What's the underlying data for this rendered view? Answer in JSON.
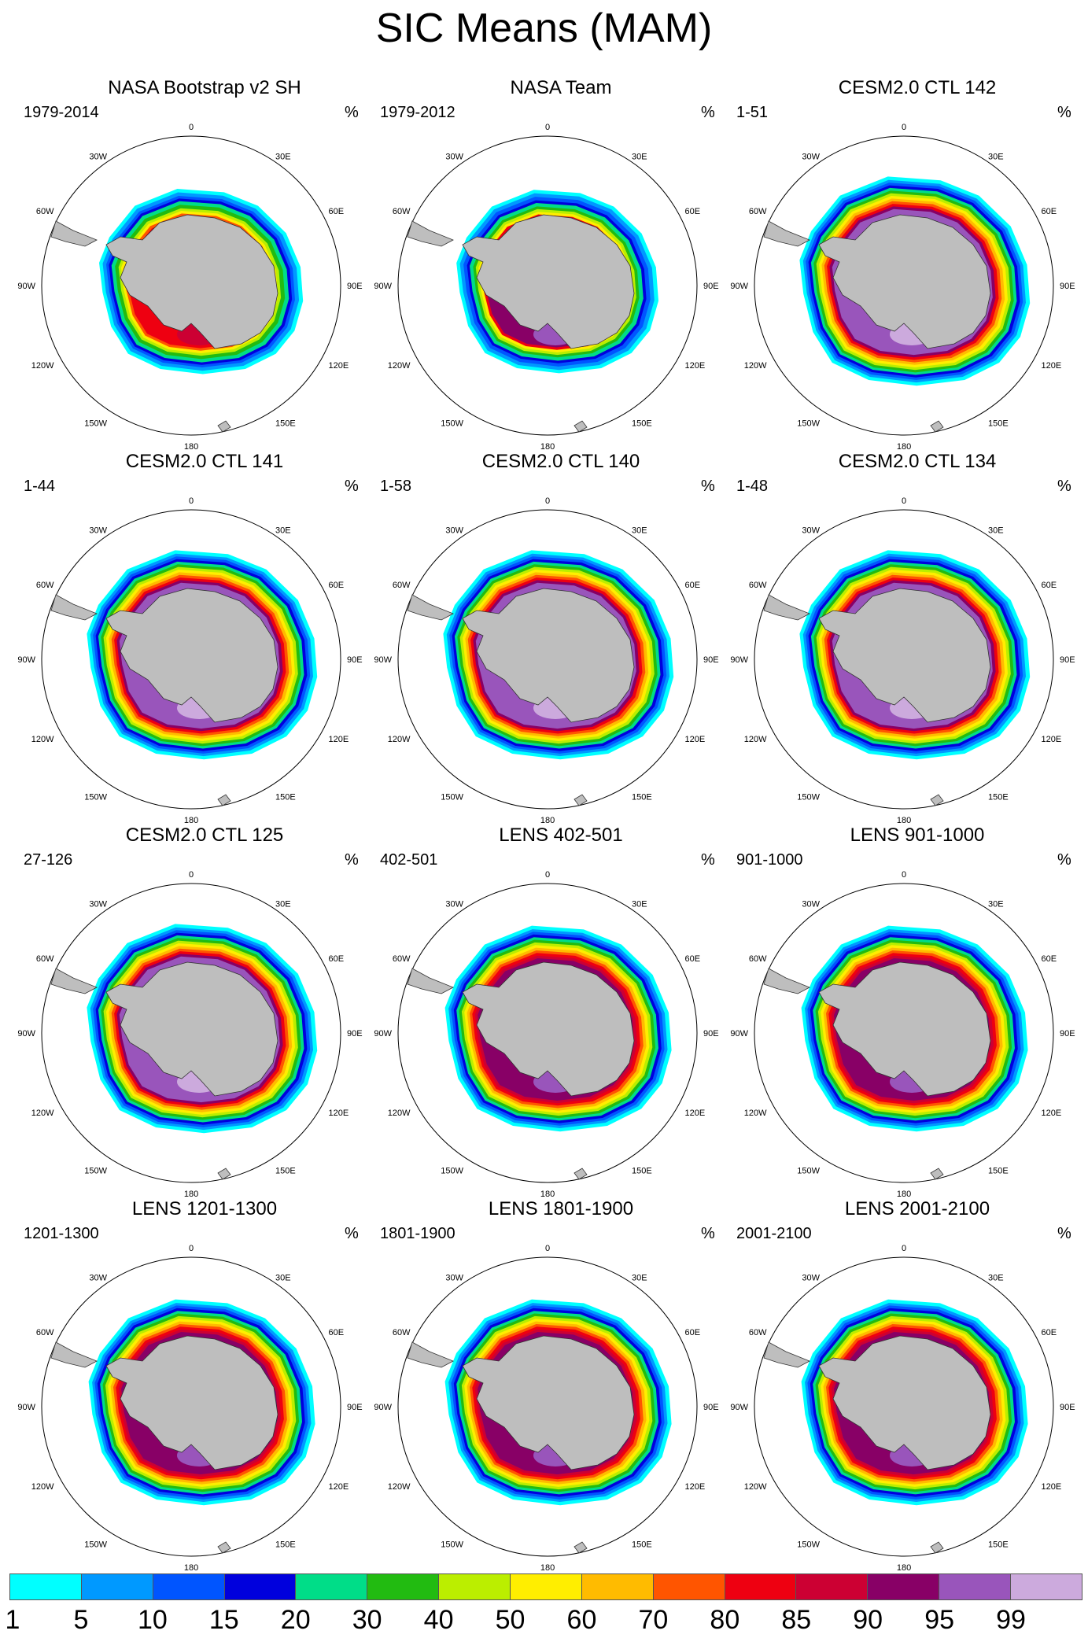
{
  "title": "SIC Means (MAM)",
  "panels": [
    {
      "title": "NASA Bootstrap v2 SH",
      "period": "1979-2014",
      "unit": "%",
      "pattern": "obs1"
    },
    {
      "title": "NASA Team",
      "period": "1979-2012",
      "unit": "%",
      "pattern": "obs2"
    },
    {
      "title": "CESM2.0 CTL 142",
      "period": "1-51",
      "unit": "%",
      "pattern": "ctl"
    },
    {
      "title": "CESM2.0 CTL 141",
      "period": "1-44",
      "unit": "%",
      "pattern": "ctl"
    },
    {
      "title": "CESM2.0 CTL 140",
      "period": "1-58",
      "unit": "%",
      "pattern": "ctl"
    },
    {
      "title": "CESM2.0 CTL 134",
      "period": "1-48",
      "unit": "%",
      "pattern": "ctl"
    },
    {
      "title": "CESM2.0 CTL 125",
      "period": "27-126",
      "unit": "%",
      "pattern": "ctl"
    },
    {
      "title": "LENS 402-501",
      "period": "402-501",
      "unit": "%",
      "pattern": "lens"
    },
    {
      "title": "LENS 901-1000",
      "period": "901-1000",
      "unit": "%",
      "pattern": "lens"
    },
    {
      "title": "LENS 1201-1300",
      "period": "1201-1300",
      "unit": "%",
      "pattern": "lens"
    },
    {
      "title": "LENS 1801-1900",
      "period": "1801-1900",
      "unit": "%",
      "pattern": "lens"
    },
    {
      "title": "LENS 2001-2100",
      "period": "2001-2100",
      "unit": "%",
      "pattern": "lens"
    }
  ],
  "map_labels": {
    "north": "0",
    "south": "180",
    "w30": "30W",
    "e30": "30E",
    "w60": "60W",
    "e60": "60E",
    "w90": "90W",
    "e90": "90E",
    "w120": "120W",
    "e120": "120E",
    "w150": "150W",
    "e150": "150E"
  },
  "colorbar": {
    "labels": [
      "1",
      "5",
      "10",
      "15",
      "20",
      "30",
      "40",
      "50",
      "60",
      "70",
      "80",
      "85",
      "90",
      "95",
      "99"
    ],
    "colors": [
      "#00ffff",
      "#0099ff",
      "#0055ff",
      "#0000dd",
      "#00dd88",
      "#22bb11",
      "#bbee00",
      "#ffee00",
      "#ffbb00",
      "#ff5500",
      "#ee0011",
      "#cc0033",
      "#880066",
      "#9955bb",
      "#ccaadd"
    ]
  },
  "land_color": "#bebebe"
}
